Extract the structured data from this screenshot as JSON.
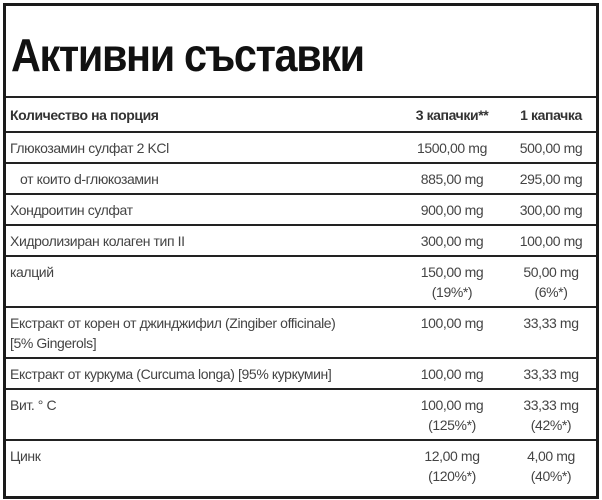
{
  "title": "Активни съставки",
  "headers": [
    "Количество на порция",
    "3 капачки**",
    "1 капачка"
  ],
  "rows": [
    {
      "name": "Глюкозамин сулфат 2 KCl",
      "col2": "1500,00 mg",
      "col2_pct": "",
      "col3": "500,00 mg",
      "col3_pct": ""
    },
    {
      "name": "от които d-глюкозамин",
      "col2": "885,00 mg",
      "col2_pct": "",
      "col3": "295,00 mg",
      "col3_pct": ""
    },
    {
      "name": "Хондроитин сулфат",
      "col2": "900,00 mg",
      "col2_pct": "",
      "col3": "300,00 mg",
      "col3_pct": ""
    },
    {
      "name": "Хидролизиран колаген тип II",
      "col2": "300,00 mg",
      "col2_pct": "",
      "col3": "100,00 mg",
      "col3_pct": ""
    },
    {
      "name": "калций",
      "col2": "150,00 mg",
      "col2_pct": "(19%*)",
      "col3": "50,00 mg",
      "col3_pct": "(6%*)"
    },
    {
      "name": "Екстракт от корен от джинджифил (Zingiber officinale)",
      "name2": "[5% Gingerols]",
      "col2": "100,00 mg",
      "col2_pct": "",
      "col3": "33,33 mg",
      "col3_pct": ""
    },
    {
      "name": "Екстракт от куркума (Curcuma longa) [95% куркумин]",
      "col2": "100,00 mg",
      "col2_pct": "",
      "col3": "33,33 mg",
      "col3_pct": ""
    },
    {
      "name": "Вит. ° C",
      "col2": "100,00 mg",
      "col2_pct": "(125%*)",
      "col3": "33,33 mg",
      "col3_pct": "(42%*)"
    },
    {
      "name": "Цинк",
      "col2": "12,00 mg",
      "col2_pct": "(120%*)",
      "col3": "4,00 mg",
      "col3_pct": "(40%*)"
    }
  ]
}
